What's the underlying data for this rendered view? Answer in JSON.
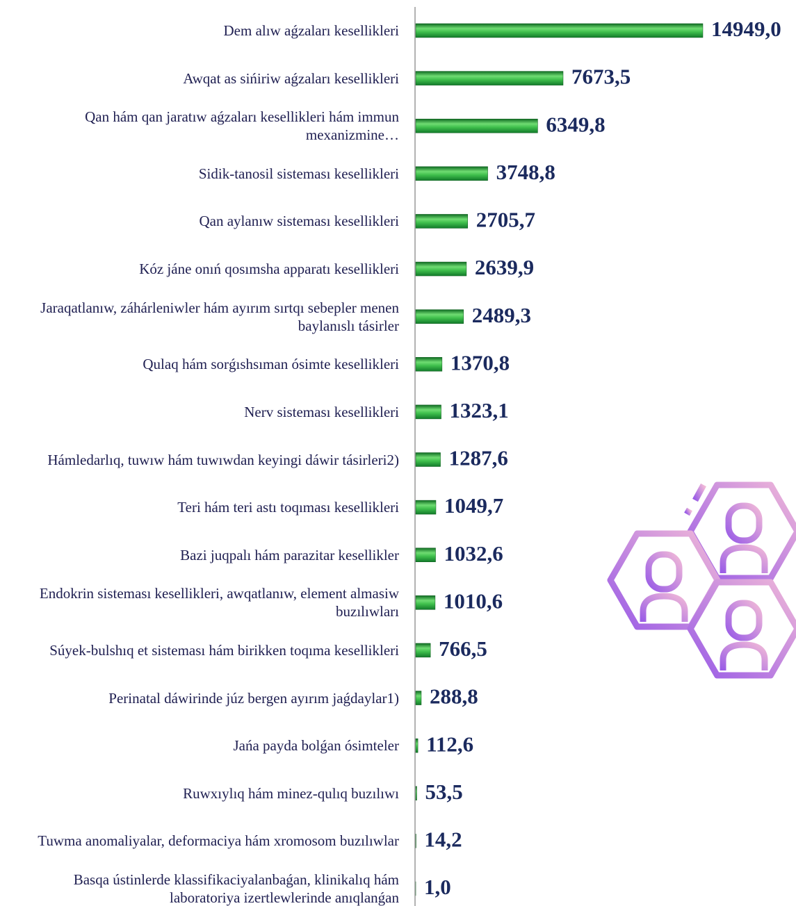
{
  "chart_data": {
    "type": "bar",
    "orientation": "horizontal",
    "categories": [
      "Dem alıw aǵzaları kesellikleri",
      "Awqat as sińiriw aǵzaları kesellikleri",
      "Qan hám qan jaratıw aǵzaları keselliklеri hám immun mexanizmine…",
      "Sidik-tanosil sisteması keselliklеri",
      "Qan aylanıw sisteması keselliklеri",
      "Kóz jáne onıń qosımsha apparatı keselliklеri",
      "Jaraqatlanıw, záhárleniwler hám ayırım sırtqı sebepler menen baylanıslı tásirler",
      "Qulaq hám sorǵıshsıman ósimte keselliklеri",
      "Nerv sisteması keselliklеri",
      "Hámledarlıq, tuwıw hám tuwıwdan keyingi dáwir tásirleri2)",
      "Teri hám teri astı toqıması keselliklеri",
      "Bazi juqpalı hám parazitar kesellikler",
      "Endokrin sisteması keselliklеri, awqatlanıw, element almasiw buzılıwları",
      "Súyek-bulshıq et sisteması hám birikken toqıma keselliklеri",
      "Perinatal dáwirinde júz bergen ayırım jaǵdaylar1)",
      "Jańa payda bolǵan ósimteler",
      "Ruwxıylıq hám minez-qulıq buzılıwı",
      "Tuwma anomaliyalar, deformaciya hám xromosom buzılıwlar",
      "Basqa ústinlerde klassifikaciyalanbaǵan, klinikalıq hám laboratoriya izertlewlerinde anıqlanǵan"
    ],
    "values": [
      14949.0,
      7673.5,
      6349.8,
      3748.8,
      2705.7,
      2639.9,
      2489.3,
      1370.8,
      1323.1,
      1287.6,
      1049.7,
      1032.6,
      1010.6,
      766.5,
      288.8,
      112.6,
      53.5,
      14.2,
      1.0
    ],
    "value_labels": [
      "14949,0",
      "7673,5",
      "6349,8",
      "3748,8",
      "2705,7",
      "2639,9",
      "2489,3",
      "1370,8",
      "1323,1",
      "1287,6",
      "1049,7",
      "1032,6",
      "1010,6",
      "766,5",
      "288,8",
      "112,6",
      "53,5",
      "14,2",
      "1,0"
    ],
    "color": "#2e9e3e"
  }
}
